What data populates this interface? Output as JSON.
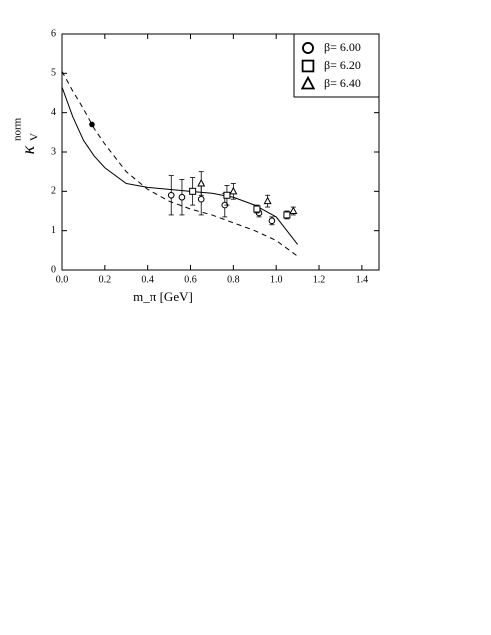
{
  "chart_data": {
    "type": "scatter",
    "xlabel": "m_π [GeV]",
    "ylabel": {
      "symbol": "κ",
      "sub": "V",
      "sup": "norm"
    },
    "xlim": [
      0,
      1.48
    ],
    "ylim": [
      0,
      6
    ],
    "xticks": [
      {
        "value": 0,
        "label": "0.0"
      },
      0.2,
      0.4,
      0.6,
      0.8,
      {
        "value": 1,
        "label": "1.0"
      },
      1.2,
      1.4
    ],
    "yticks": [
      0,
      1,
      2,
      3,
      4,
      5,
      6
    ],
    "legend": "upper right",
    "series": [
      {
        "name": "β= 6.00",
        "marker": "circle",
        "color": "#000",
        "x": [
          0.51,
          0.56,
          0.65,
          0.76,
          0.92,
          0.98
        ],
        "values": [
          1.9,
          1.85,
          1.8,
          1.65,
          1.45,
          1.25
        ],
        "errors": [
          0.5,
          0.45,
          0.4,
          0.3,
          0.1,
          0.1
        ]
      },
      {
        "name": "β= 6.20",
        "marker": "square",
        "color": "#000",
        "x": [
          0.61,
          0.77,
          0.91,
          1.05
        ],
        "values": [
          2.0,
          1.9,
          1.55,
          1.4
        ],
        "errors": [
          0.35,
          0.25,
          0.1,
          0.1
        ]
      },
      {
        "name": "β= 6.40",
        "marker": "triangle",
        "color": "#000",
        "x": [
          0.65,
          0.8,
          0.96,
          1.08
        ],
        "values": [
          2.2,
          2.0,
          1.75,
          1.5
        ],
        "errors": [
          0.3,
          0.2,
          0.15,
          0.1
        ]
      }
    ],
    "point": {
      "x": 0.14,
      "y": 3.7
    },
    "curves": [
      {
        "dash": false,
        "x": [
          0,
          0.05,
          0.1,
          0.15,
          0.2,
          0.3,
          0.4,
          0.5,
          0.6,
          0.7,
          0.8,
          0.9,
          1.0,
          1.1
        ],
        "values": [
          4.65,
          3.9,
          3.3,
          2.9,
          2.6,
          2.2,
          2.1,
          2.05,
          2.0,
          1.95,
          1.85,
          1.65,
          1.35,
          0.65
        ]
      },
      {
        "dash": true,
        "x": [
          0,
          0.05,
          0.1,
          0.15,
          0.2,
          0.3,
          0.4,
          0.5,
          0.6,
          0.7,
          0.8,
          0.9,
          1.0,
          1.1
        ],
        "values": [
          5.05,
          4.55,
          4.1,
          3.6,
          3.2,
          2.5,
          2.05,
          1.75,
          1.55,
          1.4,
          1.2,
          1.0,
          0.75,
          0.35
        ]
      }
    ]
  }
}
